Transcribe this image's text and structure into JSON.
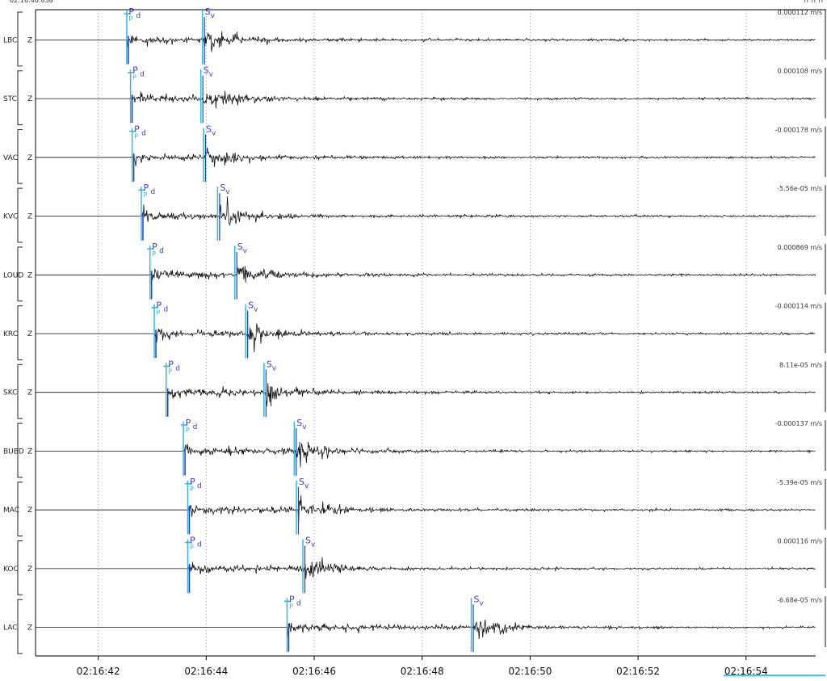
{
  "header": {
    "start_time": "02:16:40.838",
    "right_corner": "rr rr rr"
  },
  "chart_data": {
    "type": "line",
    "title": "",
    "xlabel": "",
    "ylabel": "",
    "x_unit": "s",
    "x_range": [
      40.838,
      55.29
    ],
    "x_ticks": [
      {
        "value": 42,
        "label": "02:16:42"
      },
      {
        "value": 44,
        "label": "02:16:44"
      },
      {
        "value": 46,
        "label": "02:16:46"
      },
      {
        "value": 48,
        "label": "02:16:48"
      },
      {
        "value": 50,
        "label": "02:16:50"
      },
      {
        "value": 52,
        "label": "02:16:52"
      },
      {
        "value": 54,
        "label": "02:16:54"
      }
    ],
    "grid": "vertical-dotted",
    "traces": [
      {
        "station": "LBC",
        "component": "Z",
        "amplitude": "0.000112 m/s",
        "p_time": 42.55,
        "p_phase": "P",
        "p_sub": "d",
        "s_time": 43.96,
        "s_phase": "S",
        "s_sub": "v"
      },
      {
        "station": "STC",
        "component": "Z",
        "amplitude": "0.000108 m/s",
        "p_time": 42.62,
        "p_phase": "P",
        "p_sub": "d",
        "s_time": 43.93,
        "s_phase": "S",
        "s_sub": "v"
      },
      {
        "station": "VAC",
        "component": "Z",
        "amplitude": "-0.000178 m/s",
        "p_time": 42.65,
        "p_phase": "P",
        "p_sub": "d",
        "s_time": 43.98,
        "s_phase": "S",
        "s_sub": "v"
      },
      {
        "station": "KVC",
        "component": "Z",
        "amplitude": "-5.56e-05 m/s",
        "p_time": 42.82,
        "p_phase": "P",
        "p_sub": "d",
        "s_time": 44.24,
        "s_phase": "S",
        "s_sub": "v"
      },
      {
        "station": "LOUD",
        "component": "Z",
        "amplitude": "0.000869 m/s",
        "p_time": 42.98,
        "p_phase": "P",
        "p_sub": "d",
        "s_time": 44.56,
        "s_phase": "S",
        "s_sub": "v"
      },
      {
        "station": "KRC",
        "component": "Z",
        "amplitude": "-0.000114 m/s",
        "p_time": 43.06,
        "p_phase": "P",
        "p_sub": "d",
        "s_time": 44.76,
        "s_phase": "S",
        "s_sub": "v"
      },
      {
        "station": "SKC",
        "component": "Z",
        "amplitude": "8.11e-05 m/s",
        "p_time": 43.28,
        "p_phase": "P",
        "p_sub": "d",
        "s_time": 45.1,
        "s_phase": "S",
        "s_sub": "v"
      },
      {
        "station": "BUBD",
        "component": "Z",
        "amplitude": "-0.000137 m/s",
        "p_time": 43.6,
        "p_phase": "P",
        "p_sub": "d",
        "s_time": 45.66,
        "s_phase": "S",
        "s_sub": "v"
      },
      {
        "station": "MAC",
        "component": "Z",
        "amplitude": "-5.39e-05 m/s",
        "p_time": 43.68,
        "p_phase": "P",
        "p_sub": "d",
        "s_time": 45.7,
        "s_phase": "S",
        "s_sub": "v"
      },
      {
        "station": "KOC",
        "component": "Z",
        "amplitude": "0.000116 m/s",
        "p_time": 43.68,
        "p_phase": "P",
        "p_sub": "d",
        "s_time": 45.82,
        "s_phase": "S",
        "s_sub": "v"
      },
      {
        "station": "LAC",
        "component": "Z",
        "amplitude": "-6.68e-05 m/s",
        "p_time": 45.52,
        "p_phase": "P",
        "p_sub": "d",
        "s_time": 48.94,
        "s_phase": "S",
        "s_sub": "v"
      }
    ]
  }
}
